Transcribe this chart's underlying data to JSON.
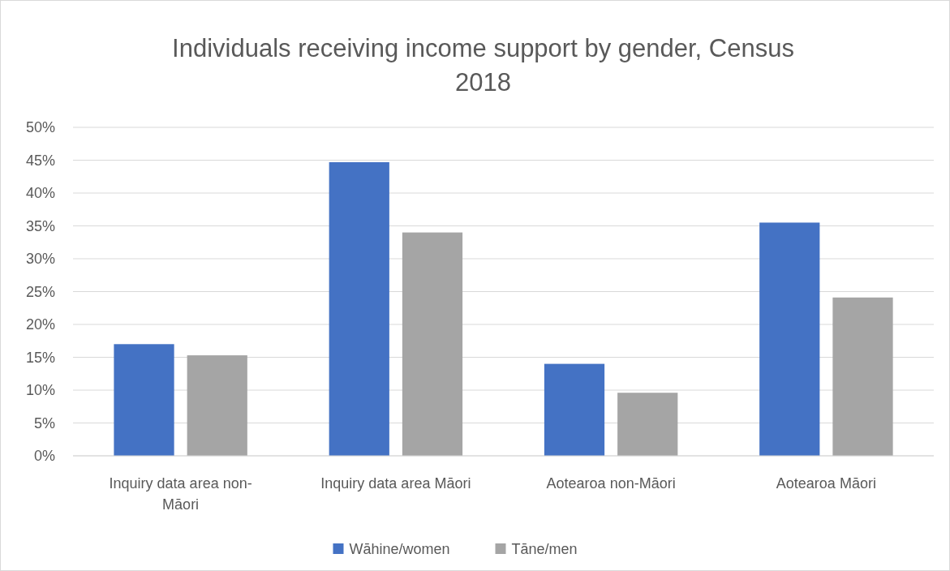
{
  "chart_data": {
    "type": "bar",
    "title": "Individuals receiving income support by gender, Census 2018",
    "categories": [
      "Inquiry data area non-Māori",
      "Inquiry data area Māori",
      "Aotearoa non-Māori",
      "Aotearoa Māori"
    ],
    "series": [
      {
        "name": "Wāhine/women",
        "color": "#4472c4",
        "values": [
          17.0,
          44.7,
          14.0,
          35.5
        ]
      },
      {
        "name": "Tāne/men",
        "color": "#a5a5a5",
        "values": [
          15.3,
          34.0,
          9.6,
          24.1
        ]
      }
    ],
    "ylim": [
      0,
      50
    ],
    "yticks": [
      {
        "value": 0,
        "label": "0%"
      },
      {
        "value": 5,
        "label": "5%"
      },
      {
        "value": 10,
        "label": "10%"
      },
      {
        "value": 15,
        "label": "15%"
      },
      {
        "value": 20,
        "label": "20%"
      },
      {
        "value": 25,
        "label": "25%"
      },
      {
        "value": 30,
        "label": "30%"
      },
      {
        "value": 35,
        "label": "35%"
      },
      {
        "value": 40,
        "label": "40%"
      },
      {
        "value": 45,
        "label": "45%"
      },
      {
        "value": 50,
        "label": "50%"
      }
    ],
    "grid": "y",
    "legend": "bottom"
  }
}
